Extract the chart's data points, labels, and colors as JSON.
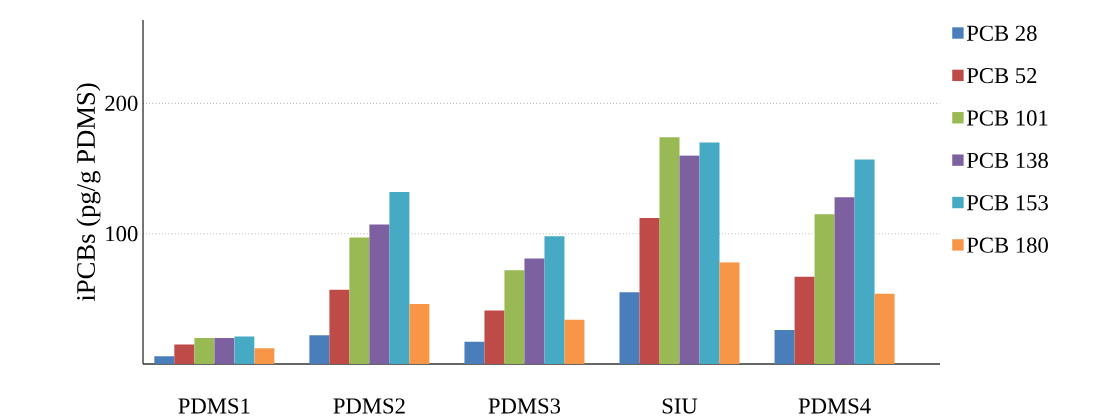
{
  "chart_data": {
    "type": "bar",
    "ylabel": "iPCBs (pg/g PDMS)",
    "categories": [
      "PDMS1",
      "PDMS2",
      "PDMS3",
      "SIU",
      "PDMS4"
    ],
    "series": [
      {
        "name": "PCB 28",
        "color": "#4a7ebb",
        "values": [
          6,
          22,
          17,
          55,
          26
        ]
      },
      {
        "name": "PCB 52",
        "color": "#be4b48",
        "values": [
          15,
          57,
          41,
          112,
          67
        ]
      },
      {
        "name": "PCB 101",
        "color": "#98b954",
        "values": [
          20,
          97,
          72,
          174,
          115
        ]
      },
      {
        "name": "PCB 138",
        "color": "#7d60a0",
        "values": [
          20,
          107,
          81,
          160,
          128
        ]
      },
      {
        "name": "PCB 153",
        "color": "#46aac5",
        "values": [
          21,
          132,
          98,
          170,
          157
        ]
      },
      {
        "name": "PCB 180",
        "color": "#f79646",
        "values": [
          12,
          46,
          34,
          78,
          54
        ]
      }
    ],
    "ylim": [
      0,
      264
    ],
    "yticks": [
      100,
      200
    ],
    "grid": "y",
    "legend": "right"
  }
}
